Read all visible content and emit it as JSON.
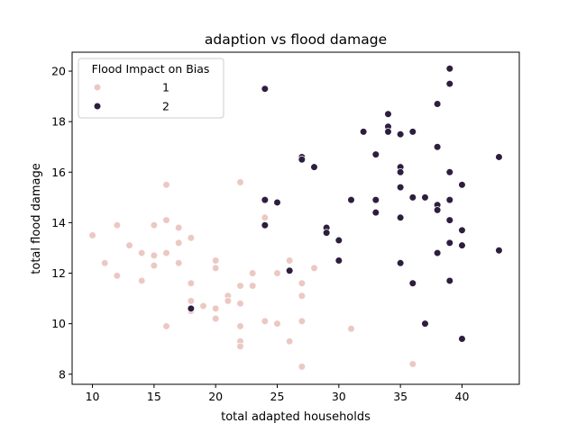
{
  "chart_data": {
    "type": "scatter",
    "title": "adaption vs flood damage",
    "xlabel": "total adapted households",
    "ylabel": "total flood damage",
    "xlim": [
      8.35,
      44.65
    ],
    "ylim": [
      7.6,
      20.75
    ],
    "xticks": [
      10,
      15,
      20,
      25,
      30,
      35,
      40
    ],
    "yticks": [
      8,
      10,
      12,
      14,
      16,
      18,
      20
    ],
    "grid": false,
    "legend": {
      "title": "Flood Impact on Bias",
      "placement": "top-left"
    },
    "series": [
      {
        "name": "1",
        "color": "#ebc9c2",
        "points": [
          [
            10,
            13.5
          ],
          [
            11,
            12.4
          ],
          [
            12,
            13.9
          ],
          [
            12,
            11.9
          ],
          [
            13,
            13.1
          ],
          [
            14,
            12.8
          ],
          [
            14,
            11.7
          ],
          [
            15,
            13.9
          ],
          [
            15,
            12.7
          ],
          [
            15,
            12.3
          ],
          [
            16,
            15.5
          ],
          [
            16,
            14.1
          ],
          [
            16,
            12.8
          ],
          [
            16,
            9.9
          ],
          [
            17,
            13.8
          ],
          [
            17,
            13.2
          ],
          [
            17,
            12.4
          ],
          [
            18,
            13.4
          ],
          [
            18,
            11.6
          ],
          [
            18,
            10.9
          ],
          [
            18,
            10.5
          ],
          [
            19,
            10.7
          ],
          [
            20,
            12.5
          ],
          [
            20,
            12.2
          ],
          [
            20,
            10.6
          ],
          [
            20,
            10.2
          ],
          [
            21,
            11.1
          ],
          [
            21,
            10.9
          ],
          [
            22,
            15.6
          ],
          [
            22,
            11.5
          ],
          [
            22,
            10.8
          ],
          [
            22,
            9.9
          ],
          [
            22,
            9.3
          ],
          [
            22,
            9.1
          ],
          [
            23,
            12.0
          ],
          [
            23,
            11.5
          ],
          [
            24,
            14.2
          ],
          [
            24,
            10.1
          ],
          [
            25,
            12.0
          ],
          [
            25,
            10.0
          ],
          [
            26,
            12.5
          ],
          [
            26,
            9.3
          ],
          [
            27,
            11.6
          ],
          [
            27,
            11.1
          ],
          [
            27,
            10.1
          ],
          [
            27,
            8.3
          ],
          [
            28,
            12.2
          ],
          [
            31,
            9.8
          ],
          [
            36,
            8.4
          ]
        ]
      },
      {
        "name": "2",
        "color": "#2d1e3e",
        "points": [
          [
            18,
            10.6
          ],
          [
            24,
            19.3
          ],
          [
            24,
            14.9
          ],
          [
            24,
            13.9
          ],
          [
            25,
            14.8
          ],
          [
            26,
            12.1
          ],
          [
            27,
            16.6
          ],
          [
            27,
            16.5
          ],
          [
            28,
            16.2
          ],
          [
            29,
            13.8
          ],
          [
            29,
            13.6
          ],
          [
            30,
            13.3
          ],
          [
            30,
            12.5
          ],
          [
            31,
            14.9
          ],
          [
            32,
            17.6
          ],
          [
            33,
            16.7
          ],
          [
            33,
            14.9
          ],
          [
            33,
            14.4
          ],
          [
            34,
            18.3
          ],
          [
            34,
            17.8
          ],
          [
            34,
            17.6
          ],
          [
            35,
            17.5
          ],
          [
            35,
            16.2
          ],
          [
            35,
            16.0
          ],
          [
            35,
            15.4
          ],
          [
            35,
            14.2
          ],
          [
            35,
            12.4
          ],
          [
            36,
            17.6
          ],
          [
            36,
            15.0
          ],
          [
            36,
            11.6
          ],
          [
            37,
            15.0
          ],
          [
            37,
            10.0
          ],
          [
            38,
            18.7
          ],
          [
            38,
            17.0
          ],
          [
            38,
            14.7
          ],
          [
            38,
            14.5
          ],
          [
            38,
            12.8
          ],
          [
            39,
            20.1
          ],
          [
            39,
            19.5
          ],
          [
            39,
            16.0
          ],
          [
            39,
            14.9
          ],
          [
            39,
            14.1
          ],
          [
            39,
            13.2
          ],
          [
            39,
            11.7
          ],
          [
            40,
            15.5
          ],
          [
            40,
            13.7
          ],
          [
            40,
            13.1
          ],
          [
            40,
            9.4
          ],
          [
            43,
            16.6
          ],
          [
            43,
            12.9
          ]
        ]
      }
    ]
  }
}
